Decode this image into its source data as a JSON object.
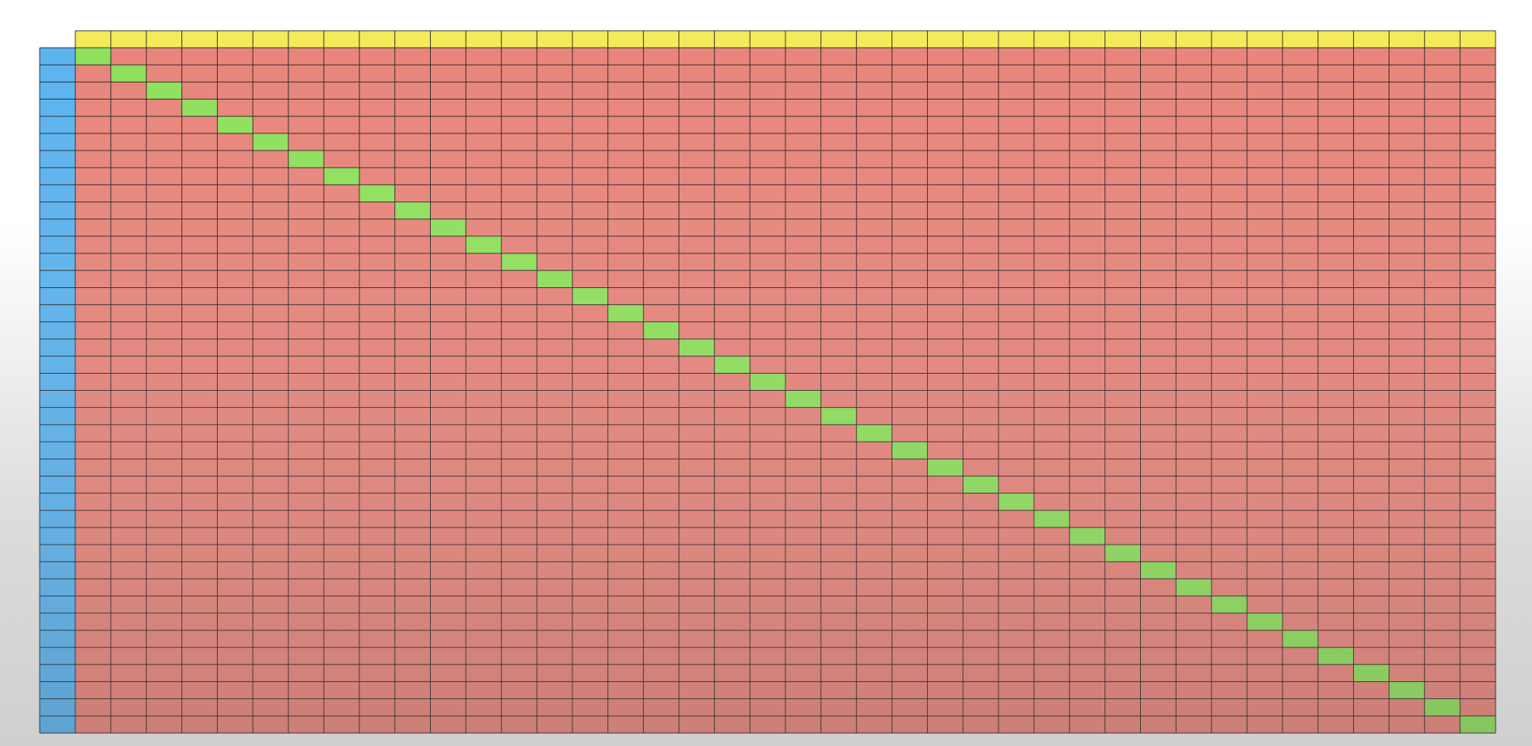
{
  "matrix": {
    "columns": 40,
    "rows": 40,
    "highlight": "diagonal"
  },
  "colors": {
    "header_row": "#f4ea5a",
    "header_column": "#5bb3ef",
    "cell": "#e8857b",
    "diagonal": "#8fe05c",
    "grid_line": "#1e1e1e"
  }
}
